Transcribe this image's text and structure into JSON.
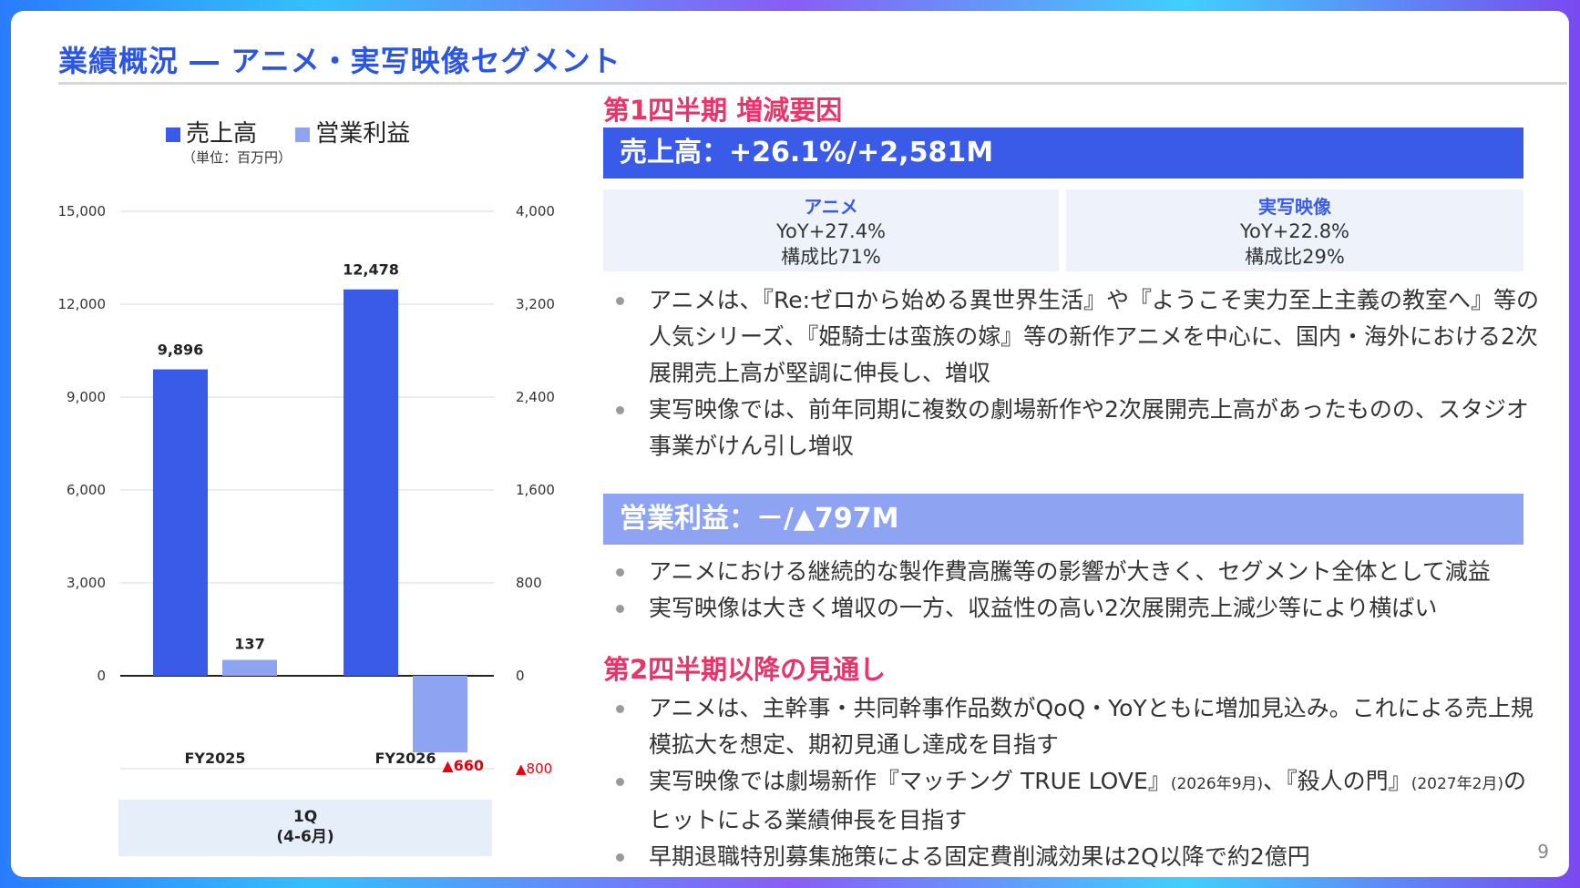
{
  "title": "業績概況 ― アニメ・実写映像セグメント",
  "page_number": "9",
  "colors": {
    "sales": "#3a5be8",
    "profit": "#8ea4f2",
    "negative": "#e8000f",
    "accent_heading": "#e8346b"
  },
  "chart_data": {
    "type": "bar",
    "categories": [
      "FY2025",
      "FY2026"
    ],
    "period_label_line1": "1Q",
    "period_label_line2": "(4-6月)",
    "unit_label": "（単位：百万円）",
    "legend": [
      "売上高",
      "営業利益"
    ],
    "series": [
      {
        "name": "売上高",
        "axis": "left",
        "values": [
          9896,
          12478
        ],
        "labels": [
          "9,896",
          "12,478"
        ]
      },
      {
        "name": "営業利益",
        "axis": "right",
        "values": [
          137,
          -660
        ],
        "labels": [
          "137",
          "▲660"
        ]
      }
    ],
    "left_axis": {
      "ylim": [
        -2000,
        15000
      ],
      "ticks": [
        0,
        3000,
        6000,
        9000,
        12000,
        15000
      ],
      "tick_labels": [
        "0",
        "3,000",
        "6,000",
        "9,000",
        "12,000",
        "15,000"
      ]
    },
    "right_axis": {
      "ylim": [
        -800,
        4000
      ],
      "ticks": [
        -800,
        0,
        800,
        1600,
        2400,
        3200,
        4000
      ],
      "tick_labels": [
        "▲800",
        "0",
        "800",
        "1,600",
        "2,400",
        "3,200",
        "4,000"
      ]
    },
    "grid": true
  },
  "q1": {
    "heading": "第1四半期 増減要因",
    "sales_band": "売上高：+26.1%/+2,581M",
    "anime": {
      "label": "アニメ",
      "yoy": "YoY+27.4%",
      "share": "構成比71%"
    },
    "live": {
      "label": "実写映像",
      "yoy": "YoY+22.8%",
      "share": "構成比29%"
    },
    "sales_bullets": [
      "アニメは、『Re:ゼロから始める異世界生活』や『ようこそ実力至上主義の教室へ』等の人気シリーズ、『姫騎士は蛮族の嫁』等の新作アニメを中心に、国内・海外における2次展開売上高が堅調に伸長し、増収",
      "実写映像では、前年同期に複数の劇場新作や2次展開売上高があったものの、スタジオ事業がけん引し増収"
    ],
    "profit_band": "営業利益：－/▲797M",
    "profit_bullets": [
      "アニメにおける継続的な製作費高騰等の影響が大きく、セグメント全体として減益",
      "実写映像は大きく増収の一方、収益性の高い2次展開売上減少等により横ばい"
    ]
  },
  "outlook": {
    "heading": "第2四半期以降の見通し",
    "bullet1": "アニメは、主幹事・共同幹事作品数がQoQ・YoYともに増加見込み。これによる売上規模拡大を想定、期初見通し達成を目指す",
    "bullet2_a": "実写映像では劇場新作『マッチング TRUE LOVE』",
    "bullet2_b": "(2026年9月)",
    "bullet2_c": "、『殺人の門』",
    "bullet2_d": "(2027年2月)",
    "bullet2_e": "のヒットによる業績伸長を目指す",
    "bullet3": "早期退職特別募集施策による固定費削減効果は2Q以降で約2億円"
  }
}
